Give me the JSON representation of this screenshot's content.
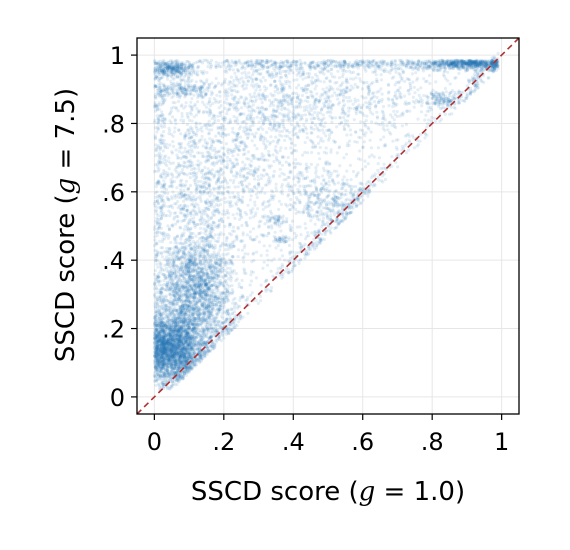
{
  "chart_data": {
    "type": "scatter",
    "title": "",
    "xlabel": "SSCD score (g = 1.0)",
    "ylabel": "SSCD score (g = 7.5)",
    "xlabel_parts": {
      "prefix": "SSCD score (",
      "var": "g",
      "suffix": " = 1.0)"
    },
    "ylabel_parts": {
      "prefix": "SSCD score (",
      "var": "g",
      "suffix": " = 7.5)"
    },
    "xlim": [
      -0.05,
      1.05
    ],
    "ylim": [
      -0.05,
      1.05
    ],
    "xticks": [
      0,
      0.2,
      0.4,
      0.6,
      0.8,
      1.0
    ],
    "xtick_labels": [
      "0",
      ".2",
      ".4",
      ".6",
      ".8",
      "1"
    ],
    "yticks": [
      0,
      0.2,
      0.4,
      0.6,
      0.8,
      1.0
    ],
    "ytick_labels": [
      "0",
      ".2",
      ".4",
      ".6",
      ".8",
      "1"
    ],
    "grid": true,
    "reference_line": {
      "style": "dashed",
      "from": [
        -0.05,
        -0.05
      ],
      "to": [
        1.05,
        1.05
      ],
      "color": "#b03030"
    },
    "point_color": "#1f77b4",
    "point_alpha": 0.12,
    "clusters": [
      {
        "center": [
          0.05,
          0.14
        ],
        "spread": [
          0.04,
          0.05
        ],
        "n": 2200
      },
      {
        "center": [
          0.11,
          0.25
        ],
        "spread": [
          0.06,
          0.09
        ],
        "n": 1800
      },
      {
        "center": [
          0.12,
          0.35
        ],
        "spread": [
          0.05,
          0.06
        ],
        "n": 700
      },
      {
        "center": [
          0.12,
          0.55
        ],
        "spread": [
          0.09,
          0.12
        ],
        "n": 900
      },
      {
        "center": [
          0.25,
          0.7
        ],
        "spread": [
          0.14,
          0.1
        ],
        "n": 700
      },
      {
        "center": [
          0.45,
          0.45
        ],
        "spread": [
          0.12,
          0.12
        ],
        "n": 500
      },
      {
        "center": [
          0.5,
          0.58
        ],
        "spread": [
          0.05,
          0.04
        ],
        "n": 250
      },
      {
        "center": [
          0.35,
          0.52
        ],
        "spread": [
          0.015,
          0.008
        ],
        "n": 40
      },
      {
        "center": [
          0.37,
          0.46
        ],
        "spread": [
          0.012,
          0.006
        ],
        "n": 30
      },
      {
        "center": [
          0.4,
          0.9
        ],
        "spread": [
          0.25,
          0.06
        ],
        "n": 900
      },
      {
        "center": [
          0.05,
          0.96
        ],
        "spread": [
          0.03,
          0.012
        ],
        "n": 300
      },
      {
        "center": [
          0.08,
          0.9
        ],
        "spread": [
          0.05,
          0.01
        ],
        "n": 150
      },
      {
        "center": [
          0.55,
          0.97
        ],
        "spread": [
          0.25,
          0.01
        ],
        "n": 500
      },
      {
        "center": [
          0.9,
          0.975
        ],
        "spread": [
          0.06,
          0.008
        ],
        "n": 600
      },
      {
        "center": [
          0.83,
          0.87
        ],
        "spread": [
          0.03,
          0.012
        ],
        "n": 120
      },
      {
        "center": [
          0.93,
          0.86
        ],
        "spread": [
          0.015,
          0.01
        ],
        "n": 60
      },
      {
        "center": [
          0.3,
          0.82
        ],
        "spread": [
          0.22,
          0.04
        ],
        "n": 300
      },
      {
        "center": [
          0.6,
          0.8
        ],
        "spread": [
          0.18,
          0.08
        ],
        "n": 300
      }
    ]
  }
}
